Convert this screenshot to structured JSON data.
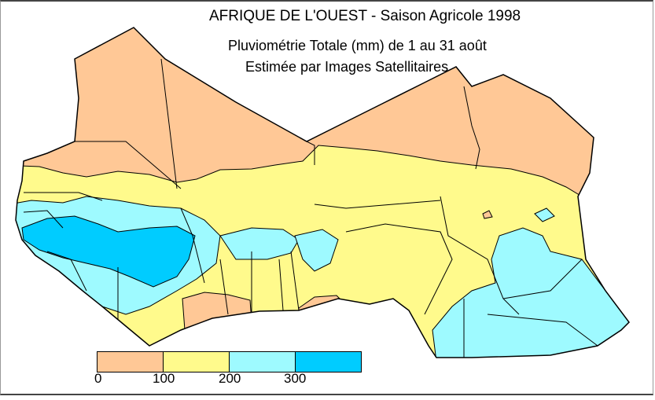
{
  "title": {
    "region": "AFRIQUE DE L'OUEST",
    "separator": " - ",
    "season": "Saison Agricole 1998",
    "subtitle": "Pluviométrie Totale (mm) de 1 au 31 août",
    "subtitle2": "Estimée par Images Satellitaires"
  },
  "legend": {
    "classes": [
      {
        "range": "0–100",
        "color": "#FFC896"
      },
      {
        "range": "100–200",
        "color": "#FFFA8C"
      },
      {
        "range": "200–300",
        "color": "#9EFAFF"
      },
      {
        "range": ">300",
        "color": "#00CCFF"
      }
    ],
    "tick_labels": [
      "0",
      "100",
      "200",
      "300"
    ]
  },
  "colors": {
    "border": "#000000",
    "background": "#FFFFFF"
  }
}
